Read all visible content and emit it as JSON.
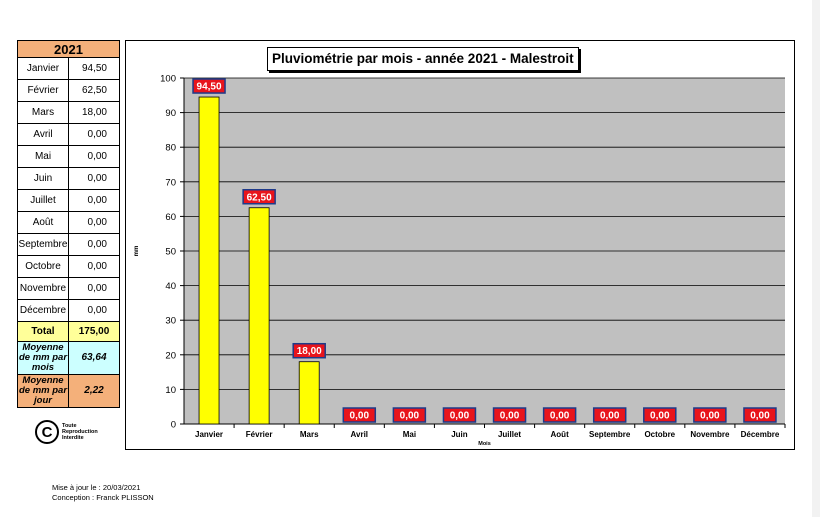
{
  "table": {
    "year": "2021",
    "months": [
      {
        "name": "Janvier",
        "value": "94,50"
      },
      {
        "name": "Février",
        "value": "62,50"
      },
      {
        "name": "Mars",
        "value": "18,00"
      },
      {
        "name": "Avril",
        "value": "0,00"
      },
      {
        "name": "Mai",
        "value": "0,00"
      },
      {
        "name": "Juin",
        "value": "0,00"
      },
      {
        "name": "Juillet",
        "value": "0,00"
      },
      {
        "name": "Août",
        "value": "0,00"
      },
      {
        "name": "Septembre",
        "value": "0,00"
      },
      {
        "name": "Octobre",
        "value": "0,00"
      },
      {
        "name": "Novembre",
        "value": "0,00"
      },
      {
        "name": "Décembre",
        "value": "0,00"
      }
    ],
    "total_label": "Total",
    "total_value": "175,00",
    "avg_month_label": "Moyenne de mm par mois",
    "avg_month_value": "63,64",
    "avg_day_label": "Moyenne de mm par jour",
    "avg_day_value": "2,22"
  },
  "copyright": {
    "symbol": "C",
    "text": "Toute Reproduction Interdite"
  },
  "footer": {
    "updated": "Mise à jour le : 20/03/2021",
    "author": "Conception : Franck PLISSON"
  },
  "colors": {
    "bar": "#ffff00",
    "plot_bg": "#c0c0c0",
    "label_bg": "#e8141c",
    "label_border": "#1e3a8a"
  },
  "chart_data": {
    "type": "bar",
    "title": "Pluviométrie par mois - année 2021 - Malestroit",
    "xlabel": "Mois",
    "ylabel": "mm",
    "ylim": [
      0,
      100
    ],
    "yticks": [
      0,
      10,
      20,
      30,
      40,
      50,
      60,
      70,
      80,
      90,
      100
    ],
    "categories": [
      "Janvier",
      "Février",
      "Mars",
      "Avril",
      "Mai",
      "Juin",
      "Juillet",
      "Août",
      "Septembre",
      "Octobre",
      "Novembre",
      "Décembre"
    ],
    "values": [
      94.5,
      62.5,
      18,
      0,
      0,
      0,
      0,
      0,
      0,
      0,
      0,
      0
    ],
    "data_labels": [
      "94,50",
      "62,50",
      "18,00",
      "0,00",
      "0,00",
      "0,00",
      "0,00",
      "0,00",
      "0,00",
      "0,00",
      "0,00",
      "0,00"
    ],
    "grid": true,
    "legend": "none"
  }
}
